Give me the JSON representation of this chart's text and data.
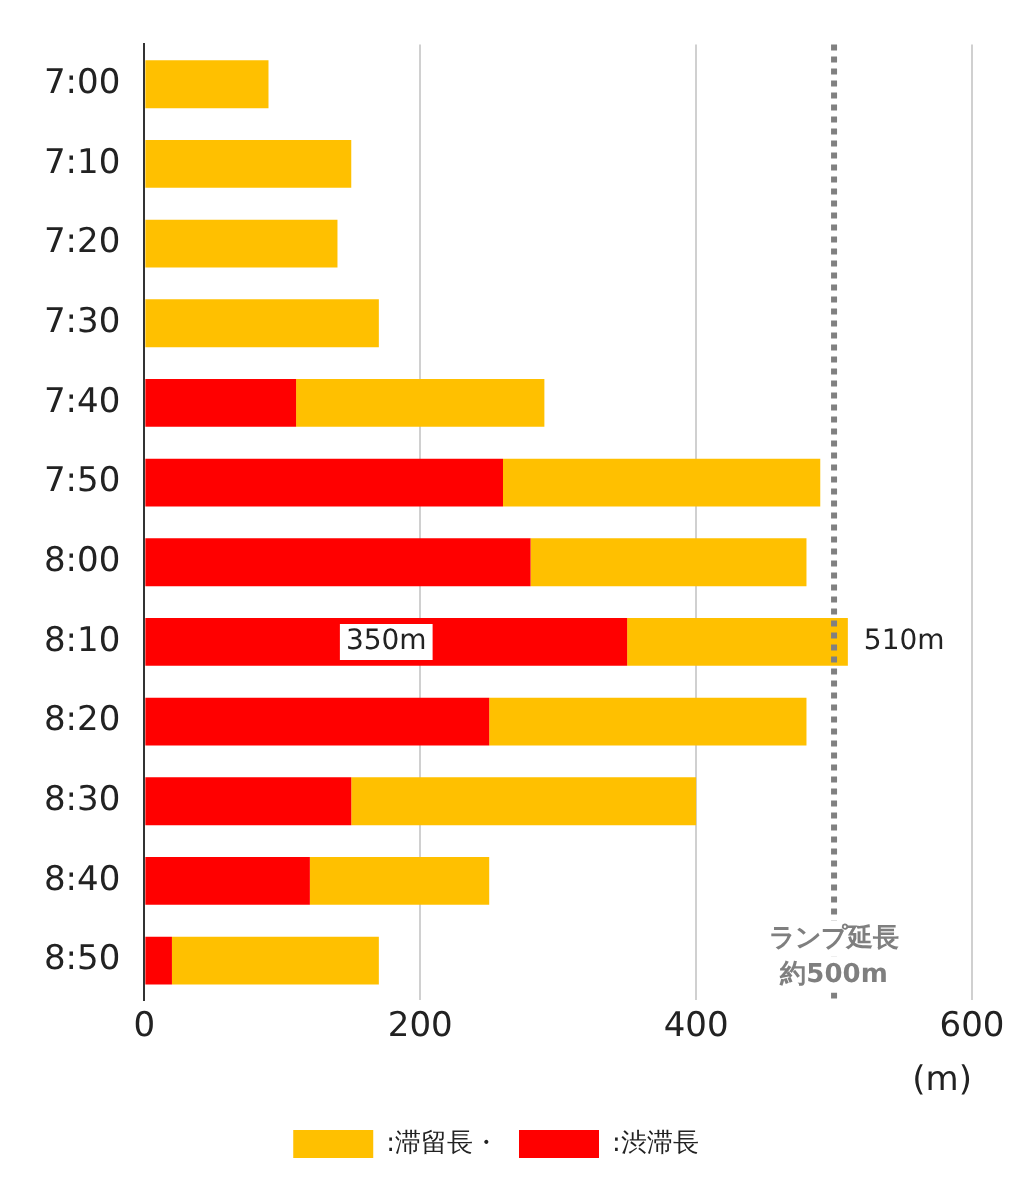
{
  "chart_data": {
    "type": "bar",
    "orientation": "horizontal",
    "stacked": true,
    "categories": [
      "7:00",
      "7:10",
      "7:20",
      "7:30",
      "7:40",
      "7:50",
      "8:00",
      "8:10",
      "8:20",
      "8:30",
      "8:40",
      "8:50"
    ],
    "series": [
      {
        "name": ":渋滞長",
        "color": "#ff0000",
        "values": [
          0,
          0,
          0,
          0,
          110,
          260,
          280,
          350,
          250,
          150,
          120,
          20
        ],
        "value_labels": [
          null,
          null,
          null,
          null,
          null,
          null,
          null,
          "350m",
          null,
          null,
          null,
          null
        ]
      },
      {
        "name": ":滞留長・",
        "color": "#ffc000",
        "values": [
          90,
          150,
          140,
          170,
          180,
          230,
          200,
          160,
          230,
          250,
          130,
          150
        ]
      }
    ],
    "totals": [
      null,
      null,
      null,
      null,
      null,
      null,
      null,
      "510m",
      null,
      null,
      null,
      null
    ],
    "xlim": [
      0,
      600
    ],
    "xticks": [
      0,
      200,
      400,
      600
    ],
    "xlabel": "(m)",
    "grid": "x",
    "legend": "bottom",
    "ref_lines": [
      {
        "axis": "x",
        "value": 500,
        "label": "ランプ延長約500m",
        "color": "#808080",
        "line_style": "dotted"
      }
    ]
  }
}
